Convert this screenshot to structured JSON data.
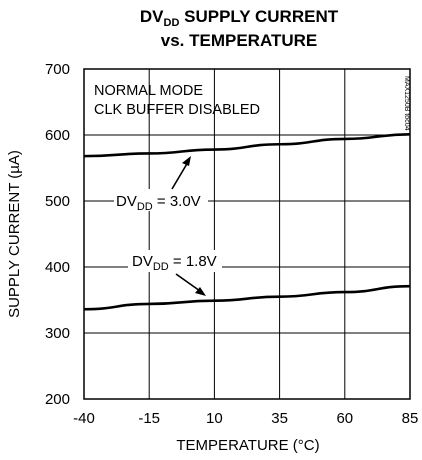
{
  "chart_data": {
    "type": "line",
    "title_line1_prefix": "DV",
    "title_line1_sub": "DD",
    "title_line1_suffix": " SUPPLY CURRENT",
    "title_line2": "vs. TEMPERATURE",
    "xlabel": "TEMPERATURE (°C)",
    "ylabel": "SUPPLY CURRENT (µA)",
    "xlim": [
      -40,
      85
    ],
    "ylim": [
      200,
      700
    ],
    "x_ticks": [
      -40,
      -15,
      10,
      35,
      60,
      85
    ],
    "y_ticks": [
      200,
      300,
      400,
      500,
      600,
      700
    ],
    "grid": true,
    "annotation_lines": [
      "NORMAL MODE",
      "CLK BUFFER DISABLED"
    ],
    "watermark": "MAX1250B toc04",
    "series": [
      {
        "label_prefix": "DV",
        "label_sub": "DD",
        "label_suffix": " = 3.0V",
        "x": [
          -40,
          -15,
          10,
          35,
          60,
          85
        ],
        "y": [
          568,
          572,
          578,
          586,
          594,
          601
        ]
      },
      {
        "label_prefix": "DV",
        "label_sub": "DD",
        "label_suffix": " = 1.8V",
        "x": [
          -40,
          -15,
          10,
          35,
          60,
          85
        ],
        "y": [
          336,
          344,
          349,
          355,
          362,
          371
        ]
      }
    ]
  }
}
